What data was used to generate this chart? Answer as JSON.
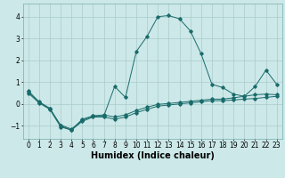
{
  "title": "",
  "xlabel": "Humidex (Indice chaleur)",
  "bg_color": "#cce8e8",
  "grid_color": "#aacccc",
  "line_color": "#1a6b6b",
  "xlim": [
    -0.5,
    23.5
  ],
  "ylim": [
    -1.6,
    4.6
  ],
  "xticks": [
    0,
    1,
    2,
    3,
    4,
    5,
    6,
    7,
    8,
    9,
    10,
    11,
    12,
    13,
    14,
    15,
    16,
    17,
    18,
    19,
    20,
    21,
    22,
    23
  ],
  "yticks": [
    -1,
    0,
    1,
    2,
    3,
    4
  ],
  "x_main": [
    0,
    1,
    2,
    3,
    4,
    5,
    6,
    7,
    8,
    9,
    10,
    11,
    12,
    13,
    14,
    15,
    16,
    17,
    18,
    19,
    20,
    21,
    22,
    23
  ],
  "y_main": [
    0.6,
    0.1,
    -0.2,
    -1.0,
    -1.2,
    -0.7,
    -0.55,
    -0.55,
    0.8,
    0.3,
    2.4,
    3.1,
    4.0,
    4.05,
    3.9,
    3.35,
    2.3,
    0.9,
    0.75,
    0.45,
    0.35,
    0.8,
    1.55,
    0.9
  ],
  "y_lower": [
    0.5,
    0.05,
    -0.25,
    -1.05,
    -1.2,
    -0.8,
    -0.6,
    -0.6,
    -0.7,
    -0.6,
    -0.4,
    -0.25,
    -0.1,
    -0.05,
    0.0,
    0.05,
    0.1,
    0.15,
    0.15,
    0.18,
    0.22,
    0.25,
    0.3,
    0.35
  ],
  "y_upper": [
    0.55,
    0.08,
    -0.22,
    -0.97,
    -1.15,
    -0.75,
    -0.55,
    -0.5,
    -0.6,
    -0.5,
    -0.3,
    -0.15,
    -0.02,
    0.02,
    0.07,
    0.12,
    0.17,
    0.22,
    0.22,
    0.28,
    0.35,
    0.42,
    0.45,
    0.42
  ],
  "xlabel_fontsize": 7,
  "tick_fontsize": 5.5
}
